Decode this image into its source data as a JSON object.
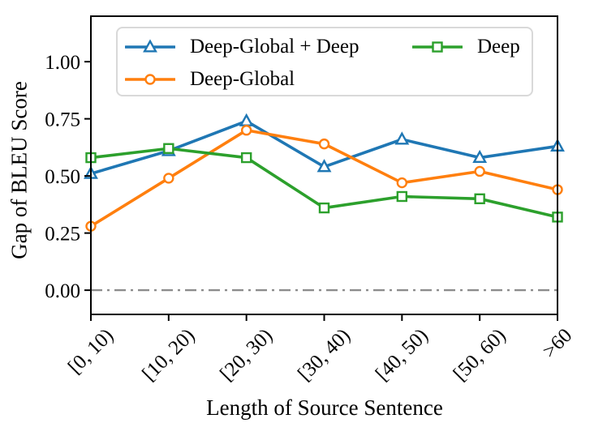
{
  "chart_data": {
    "type": "line",
    "title": "",
    "xlabel": "Length of Source Sentence",
    "ylabel": "Gap of BLEU Score",
    "categories": [
      "[0, 10)",
      "[10, 20)",
      "[20, 30)",
      "[30, 40)",
      "[40, 50)",
      "[50, 60)",
      ">60"
    ],
    "series": [
      {
        "name": "Deep-Global + Deep",
        "color": "#1f77b4",
        "marker": "triangle",
        "values": [
          0.51,
          0.61,
          0.74,
          0.54,
          0.66,
          0.58,
          0.63
        ]
      },
      {
        "name": "Deep-Global",
        "color": "#ff7f0e",
        "marker": "circle",
        "values": [
          0.28,
          0.49,
          0.7,
          0.64,
          0.47,
          0.52,
          0.44
        ]
      },
      {
        "name": "Deep",
        "color": "#2ca02c",
        "marker": "square",
        "values": [
          0.58,
          0.62,
          0.58,
          0.36,
          0.41,
          0.4,
          0.32
        ]
      }
    ],
    "yticks": [
      0,
      0.25,
      0.5,
      0.75,
      1.0
    ],
    "ytick_labels": [
      "0.00",
      "0.25",
      "0.50",
      "0.75",
      "1.00"
    ],
    "ylim": [
      -0.106,
      1.199
    ],
    "grid": false,
    "zero_line": {
      "value": 0,
      "color": "#8c8c8c",
      "style": "dash-dot"
    },
    "legend": {
      "position": "upper center",
      "columns": 2
    },
    "axis_color": "#000000"
  }
}
